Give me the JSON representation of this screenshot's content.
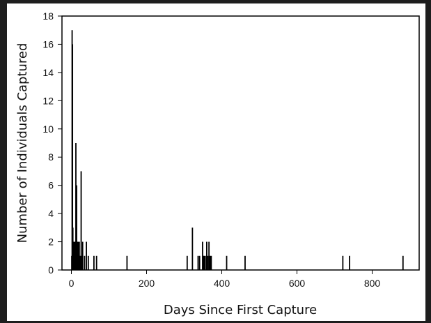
{
  "chart_data": {
    "type": "bar",
    "title": "",
    "xlabel": "Days Since First Capture",
    "ylabel": "Number of Individuals Captured",
    "xlim": [
      -25,
      925
    ],
    "ylim": [
      0,
      18
    ],
    "x_ticks": [
      0,
      200,
      400,
      600,
      800
    ],
    "y_ticks": [
      0,
      2,
      4,
      6,
      8,
      10,
      12,
      14,
      16,
      18
    ],
    "grid": false,
    "legend": "none",
    "bar_color": "#000000",
    "series": [
      {
        "x": [
          1,
          2,
          3,
          4,
          5,
          6,
          7,
          8,
          9,
          10,
          11,
          12,
          13,
          14,
          15,
          16,
          17,
          18,
          19,
          20,
          21,
          22,
          24,
          26,
          28,
          30,
          35,
          40,
          45,
          60,
          67,
          148,
          308,
          322,
          337,
          341,
          349,
          351,
          353,
          356,
          360,
          363,
          366,
          369,
          372,
          413,
          462,
          722,
          740,
          882
        ],
        "values": [
          1,
          17,
          16,
          3,
          2,
          1,
          2,
          1,
          1,
          2,
          1,
          9,
          2,
          6,
          1,
          2,
          1,
          2,
          1,
          1,
          2,
          1,
          1,
          7,
          1,
          2,
          1,
          2,
          1,
          1,
          1,
          1,
          1,
          3,
          1,
          1,
          2,
          1,
          1,
          1,
          2,
          1,
          2,
          1,
          1,
          1,
          1,
          1,
          1,
          1
        ]
      }
    ]
  }
}
